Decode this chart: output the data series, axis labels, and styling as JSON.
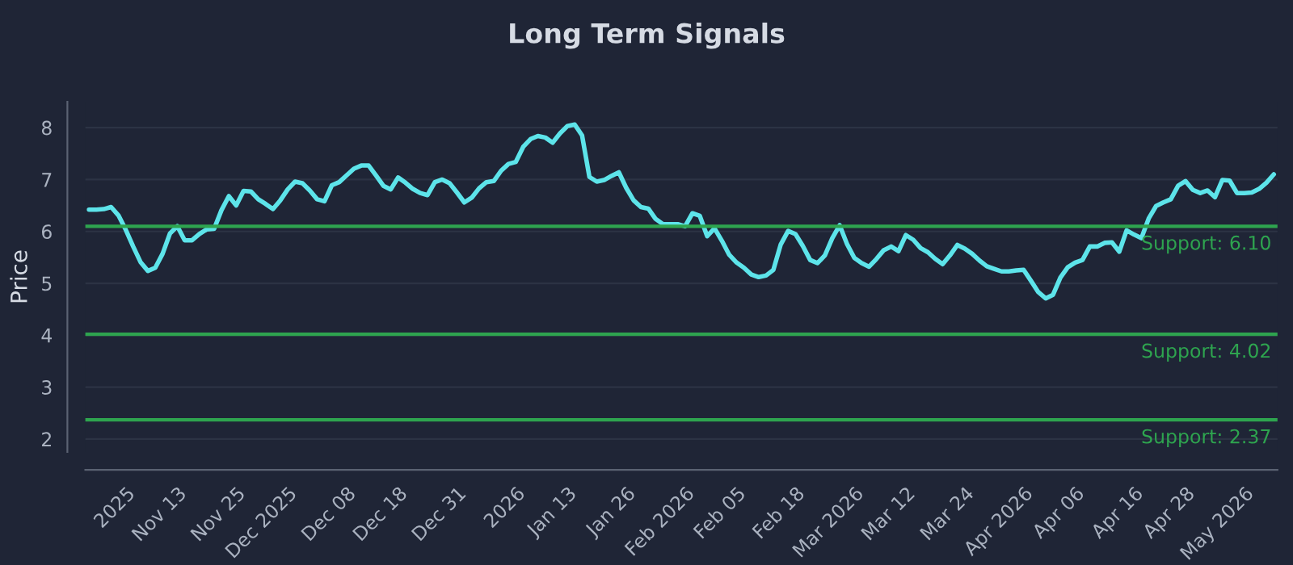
{
  "chart_data": {
    "type": "line",
    "title": "Long Term Signals",
    "ylabel": "Price",
    "categories": [
      null,
      null,
      null,
      null,
      null,
      "2025",
      null,
      null,
      null,
      null,
      null,
      null,
      "Nov 13",
      null,
      null,
      null,
      null,
      null,
      null,
      null,
      "Nov 25",
      null,
      null,
      null,
      null,
      null,
      null,
      "Dec 2025",
      null,
      null,
      null,
      null,
      null,
      null,
      null,
      "Dec 08",
      null,
      null,
      null,
      null,
      null,
      null,
      "Dec 18",
      null,
      null,
      null,
      null,
      null,
      null,
      null,
      "Dec 31",
      null,
      null,
      null,
      null,
      null,
      null,
      null,
      "2026",
      null,
      null,
      null,
      null,
      null,
      null,
      "Jan 13",
      null,
      null,
      null,
      null,
      null,
      null,
      null,
      "Jan 26",
      null,
      null,
      null,
      null,
      null,
      null,
      null,
      "Feb 2026",
      null,
      null,
      null,
      null,
      null,
      null,
      "Feb 05",
      null,
      null,
      null,
      null,
      null,
      null,
      null,
      "Feb 18",
      null,
      null,
      null,
      null,
      null,
      null,
      null,
      "Mar 2026",
      null,
      null,
      null,
      null,
      null,
      null,
      "Mar 12",
      null,
      null,
      null,
      null,
      null,
      null,
      null,
      "Mar 24",
      null,
      null,
      null,
      null,
      null,
      null,
      null,
      "Apr 2026",
      null,
      null,
      null,
      null,
      null,
      null,
      "Apr 06",
      null,
      null,
      null,
      null,
      null,
      null,
      null,
      "Apr 16",
      null,
      null,
      null,
      null,
      null,
      null,
      "Apr 28",
      null,
      null,
      null,
      null,
      null,
      null,
      null,
      "May 2026",
      null,
      null,
      null,
      null
    ],
    "series": [
      {
        "color": "#5de4ea",
        "values": [
          6.42,
          6.42,
          6.43,
          6.47,
          6.31,
          6.03,
          5.71,
          5.41,
          5.24,
          5.3,
          5.57,
          5.96,
          6.1,
          5.83,
          5.83,
          5.95,
          6.04,
          6.05,
          6.41,
          6.68,
          6.5,
          6.78,
          6.77,
          6.62,
          6.53,
          6.43,
          6.6,
          6.81,
          6.96,
          6.93,
          6.79,
          6.62,
          6.58,
          6.89,
          6.95,
          7.08,
          7.21,
          7.27,
          7.27,
          7.08,
          6.88,
          6.81,
          7.04,
          6.94,
          6.82,
          6.74,
          6.7,
          6.95,
          7.0,
          6.93,
          6.75,
          6.56,
          6.65,
          6.83,
          6.95,
          6.97,
          7.17,
          7.3,
          7.34,
          7.63,
          7.78,
          7.84,
          7.81,
          7.71,
          7.89,
          8.03,
          8.06,
          7.85,
          7.05,
          6.96,
          6.99,
          7.07,
          7.14,
          6.84,
          6.6,
          6.47,
          6.44,
          6.24,
          6.14,
          6.14,
          6.14,
          6.1,
          6.35,
          6.3,
          5.91,
          6.06,
          5.82,
          5.55,
          5.4,
          5.3,
          5.17,
          5.12,
          5.15,
          5.26,
          5.75,
          6.01,
          5.95,
          5.72,
          5.45,
          5.39,
          5.54,
          5.87,
          6.12,
          5.76,
          5.49,
          5.39,
          5.32,
          5.47,
          5.64,
          5.71,
          5.62,
          5.93,
          5.84,
          5.68,
          5.6,
          5.47,
          5.37,
          5.54,
          5.74,
          5.67,
          5.57,
          5.44,
          5.33,
          5.28,
          5.23,
          5.23,
          5.25,
          5.26,
          5.05,
          4.83,
          4.71,
          4.78,
          5.11,
          5.31,
          5.4,
          5.45,
          5.71,
          5.71,
          5.78,
          5.79,
          5.61,
          6.02,
          5.94,
          5.87,
          6.25,
          6.49,
          6.56,
          6.62,
          6.88,
          6.97,
          6.8,
          6.74,
          6.79,
          6.66,
          6.99,
          6.98,
          6.74,
          6.74,
          6.75,
          6.82,
          6.94,
          7.1
        ]
      }
    ],
    "ylim": [
      1.75,
      8.5
    ],
    "yticks": [
      2,
      3,
      4,
      5,
      6,
      7,
      8
    ],
    "ref_lines": [
      {
        "axis": "y",
        "value": 6.1,
        "label": "Support: 6.10",
        "color": "#2ea44f"
      },
      {
        "axis": "y",
        "value": 4.02,
        "label": "Support: 4.02",
        "color": "#2ea44f"
      },
      {
        "axis": "y",
        "value": 2.37,
        "label": "Support: 2.37",
        "color": "#2ea44f"
      }
    ],
    "grid": "y",
    "legend": false,
    "marker": "none",
    "line_style": "solid"
  }
}
